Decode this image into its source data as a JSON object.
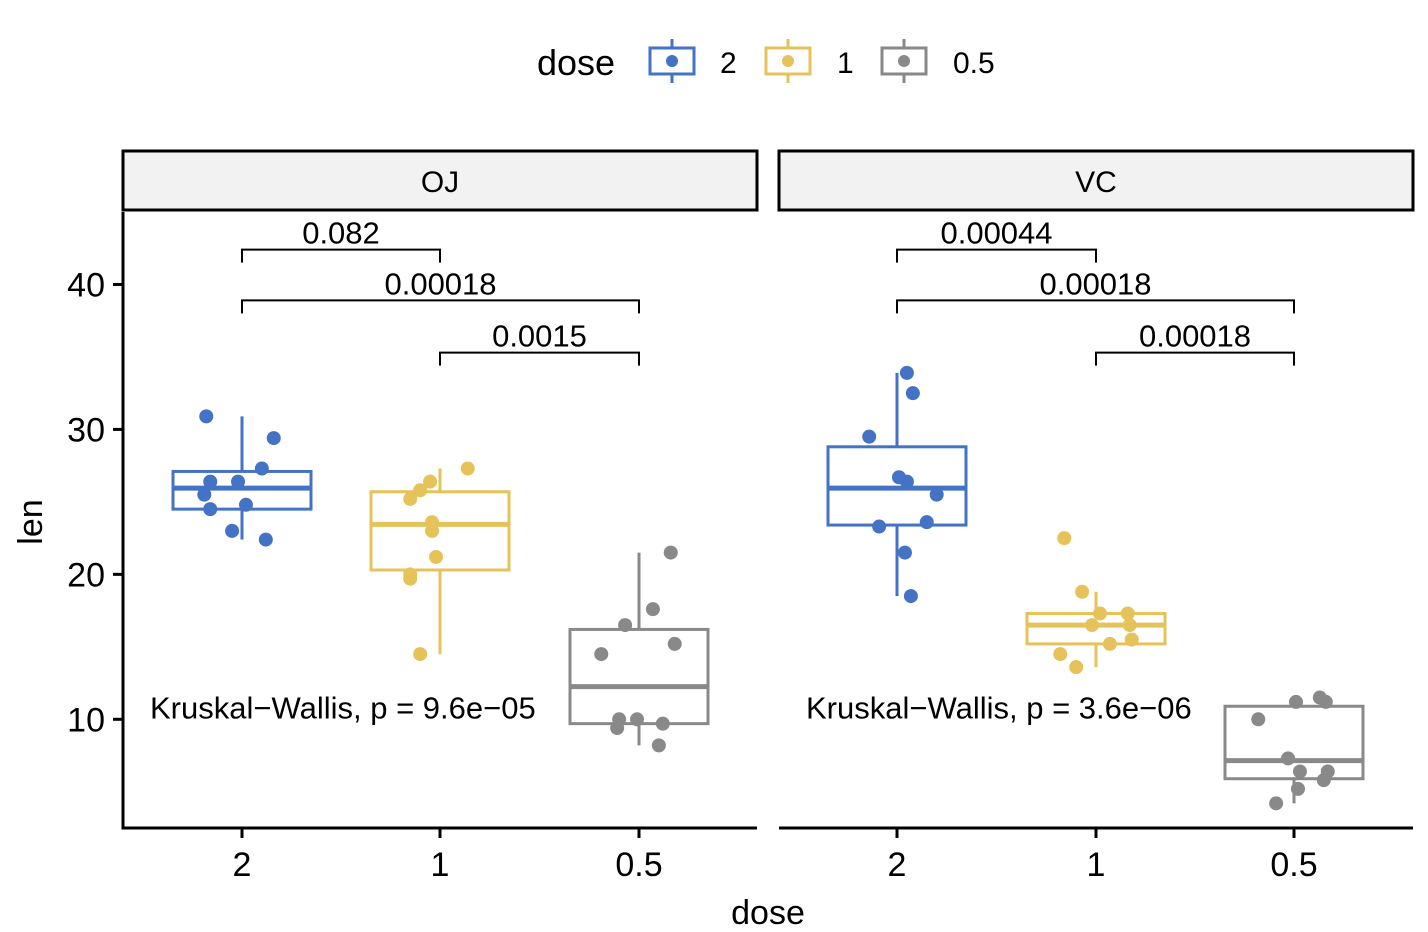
{
  "chart_data": {
    "type": "boxplot",
    "xlabel": "dose",
    "ylabel": "len",
    "ylim": [
      2.5,
      45
    ],
    "yticks": [
      10,
      20,
      30,
      40
    ],
    "categories": [
      "2",
      "1",
      "0.5"
    ],
    "legend": {
      "title": "dose",
      "position": "top",
      "entries": [
        {
          "label": "2",
          "color": "#4472c4"
        },
        {
          "label": "1",
          "color": "#e5c35a"
        },
        {
          "label": "0.5",
          "color": "#898989"
        }
      ]
    },
    "panels": [
      {
        "strip": "OJ",
        "kruskal_label": "Kruskal−Wallis, p = 9.6e−05",
        "kruskal_y": 10.8,
        "groups": [
          {
            "dose": "2",
            "q1": 24.5,
            "median": 25.95,
            "q3": 27.1,
            "whisker_low": 22.4,
            "whisker_high": 30.9,
            "points": [
              [
                -0.18,
                30.9
              ],
              [
                0.16,
                29.4
              ],
              [
                0.1,
                27.3
              ],
              [
                -0.16,
                26.4
              ],
              [
                -0.02,
                26.4
              ],
              [
                -0.19,
                25.5
              ],
              [
                0.02,
                24.8
              ],
              [
                -0.16,
                24.5
              ],
              [
                -0.05,
                23.0
              ],
              [
                0.12,
                22.4
              ]
            ]
          },
          {
            "dose": "1",
            "q1": 20.3,
            "median": 23.45,
            "q3": 25.7,
            "whisker_low": 14.5,
            "whisker_high": 27.3,
            "points": [
              [
                0.14,
                27.3
              ],
              [
                -0.05,
                26.4
              ],
              [
                -0.1,
                25.8
              ],
              [
                -0.15,
                25.2
              ],
              [
                -0.04,
                23.6
              ],
              [
                -0.04,
                23.0
              ],
              [
                -0.02,
                21.2
              ],
              [
                -0.15,
                20.0
              ],
              [
                -0.15,
                19.7
              ],
              [
                -0.1,
                14.5
              ]
            ]
          },
          {
            "dose": "0.5",
            "q1": 9.7,
            "median": 12.25,
            "q3": 16.2,
            "whisker_low": 8.2,
            "whisker_high": 21.5,
            "points": [
              [
                0.16,
                21.5
              ],
              [
                0.07,
                17.6
              ],
              [
                0.18,
                15.2
              ],
              [
                -0.07,
                16.5
              ],
              [
                -0.19,
                14.5
              ],
              [
                -0.1,
                10.0
              ],
              [
                -0.01,
                10.0
              ],
              [
                0.12,
                9.7
              ],
              [
                -0.11,
                9.4
              ],
              [
                0.1,
                8.2
              ]
            ]
          }
        ],
        "comparisons": [
          {
            "from": "2",
            "to": "1",
            "label": "0.082",
            "y": 42.4
          },
          {
            "from": "2",
            "to": "0.5",
            "label": "0.00018",
            "y": 38.9
          },
          {
            "from": "1",
            "to": "0.5",
            "label": "0.0015",
            "y": 35.3
          }
        ]
      },
      {
        "strip": "VC",
        "kruskal_label": "Kruskal−Wallis, p = 3.6e−06",
        "kruskal_y": 10.8,
        "groups": [
          {
            "dose": "2",
            "q1": 23.4,
            "median": 25.95,
            "q3": 28.8,
            "whisker_low": 18.5,
            "whisker_high": 33.9,
            "points": [
              [
                0.05,
                33.9
              ],
              [
                0.08,
                32.5
              ],
              [
                -0.14,
                29.5
              ],
              [
                0.01,
                26.7
              ],
              [
                0.05,
                26.4
              ],
              [
                0.2,
                25.5
              ],
              [
                0.15,
                23.6
              ],
              [
                -0.09,
                23.3
              ],
              [
                0.04,
                21.5
              ],
              [
                0.07,
                18.5
              ]
            ]
          },
          {
            "dose": "1",
            "q1": 15.2,
            "median": 16.5,
            "q3": 17.3,
            "whisker_low": 13.6,
            "whisker_high": 18.8,
            "points": [
              [
                -0.16,
                22.5
              ],
              [
                -0.07,
                18.8
              ],
              [
                0.02,
                17.3
              ],
              [
                0.16,
                17.3
              ],
              [
                -0.02,
                16.5
              ],
              [
                0.17,
                16.5
              ],
              [
                0.18,
                15.5
              ],
              [
                0.07,
                15.2
              ],
              [
                -0.18,
                14.5
              ],
              [
                -0.1,
                13.6
              ]
            ]
          },
          {
            "dose": "0.5",
            "q1": 5.9,
            "median": 7.15,
            "q3": 10.9,
            "whisker_low": 4.2,
            "whisker_high": 11.5,
            "points": [
              [
                0.13,
                11.5
              ],
              [
                0.16,
                11.2
              ],
              [
                0.01,
                11.2
              ],
              [
                -0.18,
                10.0
              ],
              [
                -0.03,
                7.3
              ],
              [
                0.03,
                6.4
              ],
              [
                0.17,
                6.4
              ],
              [
                0.15,
                5.8
              ],
              [
                0.02,
                5.2
              ],
              [
                -0.09,
                4.2
              ]
            ]
          }
        ],
        "comparisons": [
          {
            "from": "2",
            "to": "1",
            "label": "0.00044",
            "y": 42.4
          },
          {
            "from": "2",
            "to": "0.5",
            "label": "0.00018",
            "y": 38.9
          },
          {
            "from": "1",
            "to": "0.5",
            "label": "0.00018",
            "y": 35.3
          }
        ]
      }
    ]
  }
}
